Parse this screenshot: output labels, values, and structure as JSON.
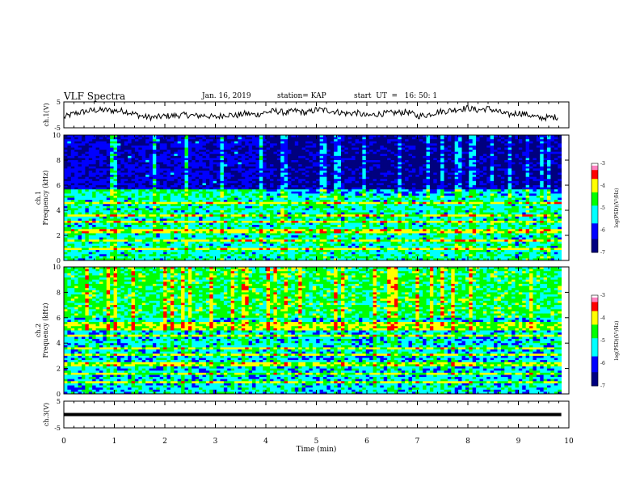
{
  "header": {
    "title": "VLF Spectra",
    "date": "Jan. 16, 2019",
    "station": "station= KAP",
    "start": "start  UT  =   16: 50: 1"
  },
  "colors": {
    "axes": "#000000",
    "trace": "#000000",
    "colormap": [
      "#00007f",
      "#0000ff",
      "#00ffff",
      "#00ff00",
      "#ffff00",
      "#ff0000",
      "#ff80c0",
      "#ffffff"
    ]
  },
  "chart_data": [
    {
      "type": "line",
      "name": "ch1-waveform",
      "ylabel": "ch.1(V)",
      "ylim": [
        -5,
        5
      ],
      "yticks": [
        "5",
        "-5"
      ],
      "xlim": [
        0,
        10
      ],
      "x": [
        0,
        0.2,
        0.4,
        0.6,
        0.8,
        1.0,
        1.2,
        1.4,
        1.6,
        1.8,
        2.0,
        2.2,
        2.4,
        2.6,
        2.8,
        3.0,
        3.2,
        3.4,
        3.6,
        3.8,
        4.0,
        4.2,
        4.4,
        4.6,
        4.8,
        5.0,
        5.2,
        5.4,
        5.6,
        5.8,
        6.0,
        6.2,
        6.4,
        6.6,
        6.8,
        7.0,
        7.2,
        7.4,
        7.6,
        7.8,
        8.0,
        8.2,
        8.4,
        8.6,
        8.8,
        9.0,
        9.2,
        9.4,
        9.6,
        9.8
      ],
      "y": [
        -1.0,
        0.5,
        1.2,
        1.8,
        1.8,
        1.6,
        1.5,
        0.3,
        -0.8,
        -1.0,
        -0.5,
        -0.3,
        0.0,
        -0.4,
        -0.2,
        -1.0,
        0.2,
        -0.3,
        0.5,
        0.0,
        1.0,
        1.5,
        0.8,
        1.6,
        0.7,
        2.0,
        1.8,
        1.2,
        0.5,
        0.8,
        -0.5,
        0.3,
        0.6,
        0.8,
        1.2,
        -0.5,
        0.0,
        1.2,
        1.5,
        2.2,
        2.6,
        1.8,
        2.5,
        1.2,
        0.0,
        0.8,
        0.0,
        -1.2,
        -1.0,
        -0.8
      ]
    },
    {
      "type": "heatmap",
      "name": "ch1-spectrogram",
      "ylabel": "ch.1\nFrequency (kHz)",
      "ylim": [
        0,
        10
      ],
      "yticks": [
        "0",
        "2",
        "4",
        "6",
        "8",
        "10"
      ],
      "xlim": [
        0,
        10
      ],
      "colorbar": {
        "label": "log(PSD)(V²/Hz)",
        "range": [
          -7,
          -3
        ],
        "ticks": [
          "-3",
          "-4",
          "-5",
          "-6",
          "-7"
        ]
      }
    },
    {
      "type": "heatmap",
      "name": "ch2-spectrogram",
      "ylabel": "ch.2\nFrequency (kHz)",
      "ylim": [
        0,
        10
      ],
      "yticks": [
        "0",
        "2",
        "4",
        "6",
        "8",
        "10"
      ],
      "xlim": [
        0,
        10
      ],
      "colorbar": {
        "label": "log(PSD)(V²/Hz)",
        "range": [
          -7,
          -3
        ],
        "ticks": [
          "-3",
          "-4",
          "-5",
          "-6",
          "-7"
        ]
      }
    },
    {
      "type": "line",
      "name": "ch3-waveform",
      "ylabel": "ch.3(V)",
      "ylim": [
        -5,
        5
      ],
      "yticks": [
        "5",
        "-5"
      ],
      "xlim": [
        0,
        10
      ],
      "x": [
        0,
        9.85
      ],
      "y": [
        0,
        0
      ]
    }
  ],
  "xaxis": {
    "label": "Time (min)",
    "ticks": [
      "0",
      "1",
      "2",
      "3",
      "4",
      "5",
      "6",
      "7",
      "8",
      "9",
      "10"
    ]
  }
}
